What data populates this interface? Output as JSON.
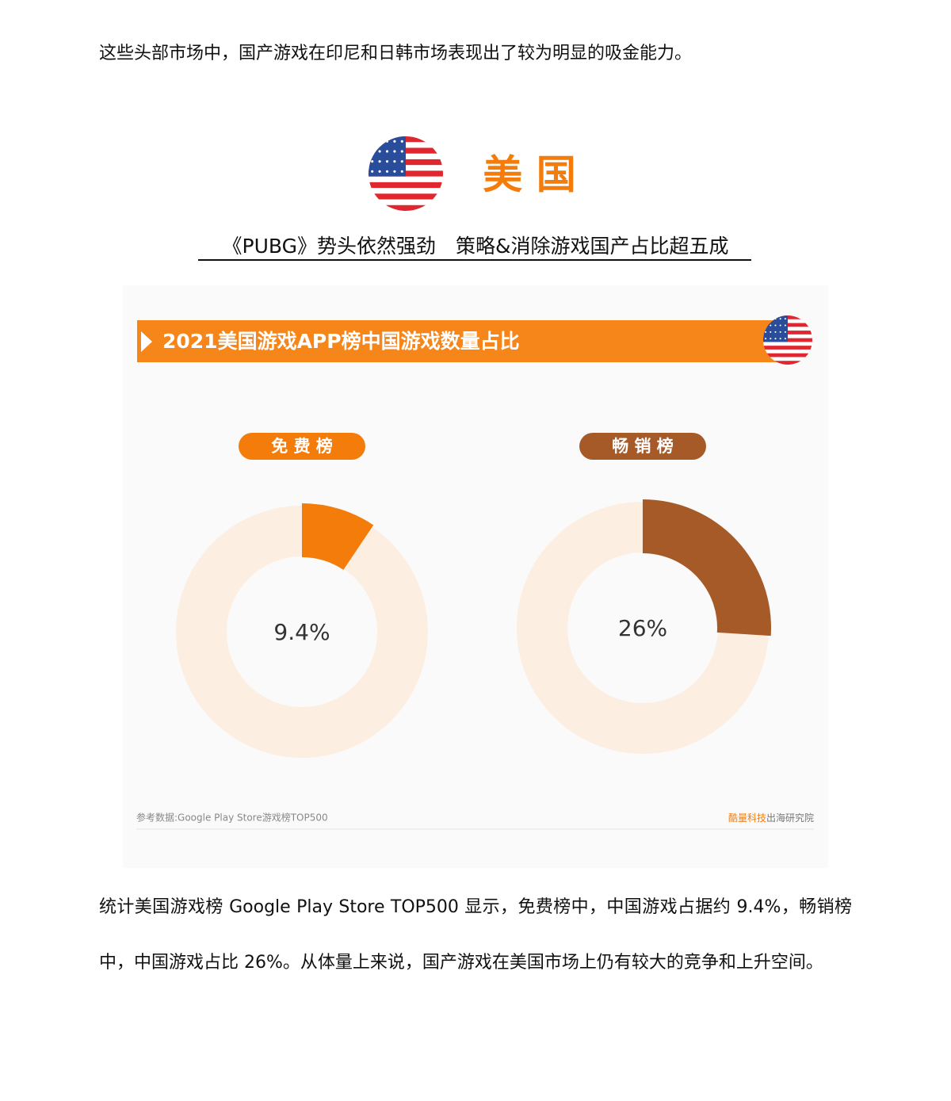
{
  "intro": "这些头部市场中，国产游戏在印尼和日韩市场表现出了较为明显的吸金能力。",
  "section": {
    "title": "美 国",
    "subtitle": "《PUBG》势头依然强劲　策略&消除游戏国产占比超五成"
  },
  "chart": {
    "type": "donut",
    "title": "2021美国游戏APP榜中国游戏数量占比",
    "track_color": "#fdeee2",
    "panels": [
      {
        "label": "免 费 榜",
        "value": 9.4,
        "value_label": "9.4%",
        "color": "#f47c0a"
      },
      {
        "label": "畅 销 榜",
        "value": 26,
        "value_label": "26%",
        "color": "#a65a28"
      }
    ],
    "source": "参考数据:Google Play Store游戏榜TOP500",
    "credit": {
      "brand": "酷量科技",
      "org": "出海研究院"
    }
  },
  "body": "统计美国游戏榜 Google Play Store TOP500 显示，免费榜中，中国游戏占据约 9.4%，畅销榜中，中国游戏占比 26%。从体量上来说，国产游戏在美国市场上仍有较大的竞争和上升空间。"
}
